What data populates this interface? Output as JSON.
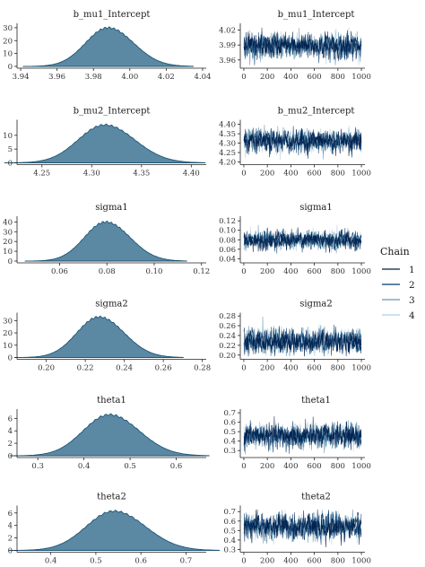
{
  "chart_data": {
    "type": "mcmc_trace_grid",
    "panels": [
      {
        "name": "b_mu1_Intercept",
        "density": {
          "type": "area",
          "x_ticks": [
            "3.94",
            "3.96",
            "3.98",
            "4.00",
            "4.02",
            "4.04"
          ],
          "x_range": [
            3.938,
            4.042
          ],
          "y_ticks": [
            "0",
            "10",
            "20",
            "30"
          ],
          "y_range": [
            0,
            32
          ],
          "mean": 3.988,
          "sd": 0.013,
          "peak": 30
        },
        "trace": {
          "type": "line",
          "x_ticks": [
            "0",
            "200",
            "400",
            "600",
            "800",
            "1000"
          ],
          "x_range": [
            -30,
            1030
          ],
          "y_ticks": [
            "3.96",
            "3.99",
            "4.02"
          ],
          "y_range": [
            3.947,
            4.03
          ],
          "mean": 3.988,
          "sd": 0.012
        }
      },
      {
        "name": "b_mu2_Intercept",
        "density": {
          "type": "area",
          "x_ticks": [
            "4.25",
            "4.30",
            "4.35",
            "4.40"
          ],
          "x_range": [
            4.225,
            4.415
          ],
          "y_ticks": [
            "0",
            "5",
            "10"
          ],
          "y_range": [
            0,
            15
          ],
          "mean": 4.313,
          "sd": 0.028,
          "peak": 13.8
        },
        "trace": {
          "type": "line",
          "x_ticks": [
            "0",
            "200",
            "400",
            "600",
            "800",
            "1000"
          ],
          "x_range": [
            -30,
            1030
          ],
          "y_ticks": [
            "4.20",
            "4.25",
            "4.30",
            "4.35",
            "4.40"
          ],
          "y_range": [
            4.195,
            4.415
          ],
          "mean": 4.312,
          "sd": 0.028
        }
      },
      {
        "name": "sigma1",
        "density": {
          "type": "area",
          "x_ticks": [
            "0.06",
            "0.08",
            "0.10",
            "0.12"
          ],
          "x_range": [
            0.042,
            0.122
          ],
          "y_ticks": [
            "0",
            "10",
            "20",
            "30",
            "40"
          ],
          "y_range": [
            0,
            44
          ],
          "mean": 0.0795,
          "sd": 0.0095,
          "peak": 40
        },
        "trace": {
          "type": "line",
          "x_ticks": [
            "0",
            "200",
            "400",
            "600",
            "800",
            "1000"
          ],
          "x_range": [
            -30,
            1030
          ],
          "y_ticks": [
            "0.04",
            "0.06",
            "0.08",
            "0.10",
            "0.12"
          ],
          "y_range": [
            0.035,
            0.126
          ],
          "mean": 0.079,
          "sd": 0.0095
        }
      },
      {
        "name": "sigma2",
        "density": {
          "type": "area",
          "x_ticks": [
            "0.20",
            "0.22",
            "0.24",
            "0.26",
            "0.28"
          ],
          "x_range": [
            0.185,
            0.282
          ],
          "y_ticks": [
            "0",
            "10",
            "20",
            "30"
          ],
          "y_range": [
            0,
            35
          ],
          "mean": 0.227,
          "sd": 0.012,
          "peak": 33
        },
        "trace": {
          "type": "line",
          "x_ticks": [
            "0",
            "200",
            "400",
            "600",
            "800",
            "1000"
          ],
          "x_range": [
            -30,
            1030
          ],
          "y_ticks": [
            "0.20",
            "0.22",
            "0.24",
            "0.26",
            "0.28"
          ],
          "y_range": [
            0.195,
            0.283
          ],
          "mean": 0.228,
          "sd": 0.012
        }
      },
      {
        "name": "theta1",
        "density": {
          "type": "area",
          "x_ticks": [
            "0.3",
            "0.4",
            "0.5",
            "0.6"
          ],
          "x_range": [
            0.255,
            0.665
          ],
          "y_ticks": [
            "0",
            "2",
            "4",
            "6"
          ],
          "y_range": [
            0,
            7.2
          ],
          "mean": 0.455,
          "sd": 0.06,
          "peak": 6.6
        },
        "trace": {
          "type": "line",
          "x_ticks": [
            "0",
            "200",
            "400",
            "600",
            "800",
            "1000"
          ],
          "x_range": [
            -30,
            1030
          ],
          "y_ticks": [
            "0.3",
            "0.4",
            "0.5",
            "0.6",
            "0.7"
          ],
          "y_range": [
            0.245,
            0.72
          ],
          "mean": 0.455,
          "sd": 0.06
        }
      },
      {
        "name": "theta2",
        "density": {
          "type": "area",
          "x_ticks": [
            "0.4",
            "0.5",
            "0.6",
            "0.7"
          ],
          "x_range": [
            0.325,
            0.745
          ],
          "y_ticks": [
            "0",
            "2",
            "4",
            "6"
          ],
          "y_range": [
            0,
            6.9
          ],
          "mean": 0.54,
          "sd": 0.065,
          "peak": 6.3
        },
        "trace": {
          "type": "line",
          "x_ticks": [
            "0",
            "200",
            "400",
            "600",
            "800",
            "1000"
          ],
          "x_range": [
            -30,
            1030
          ],
          "y_ticks": [
            "0.3",
            "0.4",
            "0.5",
            "0.6",
            "0.7"
          ],
          "y_range": [
            0.29,
            0.745
          ],
          "mean": 0.54,
          "sd": 0.065
        }
      }
    ],
    "legend": {
      "title": "Chain",
      "placement": "right",
      "entries": [
        {
          "label": "1",
          "color": "#011f4b"
        },
        {
          "label": "2",
          "color": "#03396c"
        },
        {
          "label": "3",
          "color": "#6497b1"
        },
        {
          "label": "4",
          "color": "#b3cde0"
        }
      ]
    },
    "density_fill": "#5b88a3",
    "density_line": "#1f5675",
    "n_iterations": 1000
  }
}
